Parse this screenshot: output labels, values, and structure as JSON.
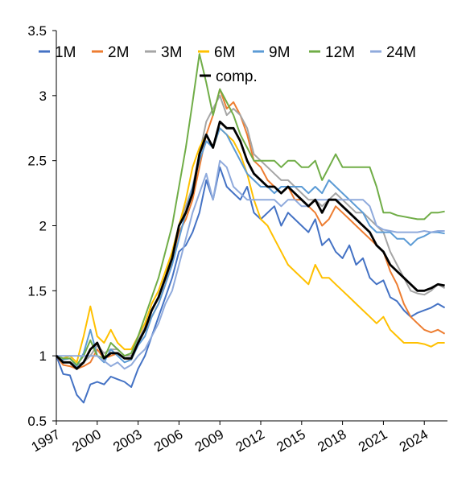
{
  "chart_data": {
    "type": "line",
    "title": "",
    "xlabel": "",
    "ylabel": "",
    "x_range": [
      1997.0,
      2025.7
    ],
    "ylim": [
      0.5,
      3.5
    ],
    "y_ticks": [
      0.5,
      1,
      1.5,
      2,
      2.5,
      3,
      3.5
    ],
    "y_tick_labels": [
      "0.5",
      "1",
      "1.5",
      "2",
      "2.5",
      "3",
      "3.5"
    ],
    "x_ticks": [
      1997,
      2000,
      2003,
      2006,
      2009,
      2012,
      2015,
      2018,
      2021,
      2024
    ],
    "x_tick_labels": [
      "1997",
      "2000",
      "2003",
      "2006",
      "2009",
      "2012",
      "2015",
      "2018",
      "2021",
      "2024"
    ],
    "grid": false,
    "legend_position": "top",
    "series": [
      {
        "name": "1M",
        "color": "#4472C4",
        "width": 2,
        "x": [
          1997,
          1997.5,
          1998,
          1998.5,
          1999,
          1999.5,
          2000,
          2000.5,
          2001,
          2001.5,
          2002,
          2002.5,
          2003,
          2003.5,
          2004,
          2004.5,
          2005,
          2005.5,
          2006,
          2006.5,
          2007,
          2007.5,
          2008,
          2008.5,
          2009,
          2009.5,
          2010,
          2010.5,
          2011,
          2011.5,
          2012,
          2012.5,
          2013,
          2013.5,
          2014,
          2014.5,
          2015,
          2015.5,
          2016,
          2016.5,
          2017,
          2017.5,
          2018,
          2018.5,
          2019,
          2019.5,
          2020,
          2020.5,
          2021,
          2021.5,
          2022,
          2022.5,
          2023,
          2023.5,
          2024,
          2024.5,
          2025,
          2025.5
        ],
        "y": [
          1.0,
          0.86,
          0.85,
          0.7,
          0.64,
          0.78,
          0.8,
          0.78,
          0.84,
          0.82,
          0.8,
          0.76,
          0.9,
          1.0,
          1.15,
          1.3,
          1.45,
          1.6,
          1.8,
          1.85,
          1.95,
          2.1,
          2.35,
          2.2,
          2.45,
          2.3,
          2.25,
          2.2,
          2.3,
          2.1,
          2.05,
          2.1,
          2.15,
          2.0,
          2.1,
          2.05,
          2.0,
          1.95,
          2.05,
          1.85,
          1.9,
          1.8,
          1.75,
          1.85,
          1.7,
          1.75,
          1.6,
          1.55,
          1.58,
          1.45,
          1.42,
          1.35,
          1.3,
          1.33,
          1.35,
          1.37,
          1.4,
          1.37
        ]
      },
      {
        "name": "2M",
        "color": "#ED7D31",
        "width": 2,
        "x": [
          1997,
          1997.5,
          1998,
          1998.5,
          1999,
          1999.5,
          2000,
          2000.5,
          2001,
          2001.5,
          2002,
          2002.5,
          2003,
          2003.5,
          2004,
          2004.5,
          2005,
          2005.5,
          2006,
          2006.5,
          2007,
          2007.5,
          2008,
          2008.5,
          2009,
          2009.5,
          2010,
          2010.5,
          2011,
          2011.5,
          2012,
          2012.5,
          2013,
          2013.5,
          2014,
          2014.5,
          2015,
          2015.5,
          2016,
          2016.5,
          2017,
          2017.5,
          2018,
          2018.5,
          2019,
          2019.5,
          2020,
          2020.5,
          2021,
          2021.5,
          2022,
          2022.5,
          2023,
          2023.5,
          2024,
          2024.5,
          2025,
          2025.5
        ],
        "y": [
          1.0,
          0.93,
          0.92,
          0.9,
          0.92,
          0.95,
          1.05,
          0.98,
          1.0,
          1.02,
          0.98,
          0.97,
          1.1,
          1.2,
          1.3,
          1.4,
          1.55,
          1.75,
          1.95,
          2.05,
          2.2,
          2.45,
          2.7,
          2.85,
          3.05,
          2.9,
          2.95,
          2.85,
          2.7,
          2.5,
          2.45,
          2.35,
          2.3,
          2.25,
          2.3,
          2.2,
          2.2,
          2.15,
          2.1,
          2.0,
          2.05,
          2.15,
          2.1,
          2.05,
          2.0,
          1.95,
          1.9,
          1.85,
          1.8,
          1.65,
          1.55,
          1.4,
          1.3,
          1.25,
          1.2,
          1.18,
          1.2,
          1.17
        ]
      },
      {
        "name": "3M",
        "color": "#A5A5A5",
        "width": 2,
        "x": [
          1997,
          1997.5,
          1998,
          1998.5,
          1999,
          1999.5,
          2000,
          2000.5,
          2001,
          2001.5,
          2002,
          2002.5,
          2003,
          2003.5,
          2004,
          2004.5,
          2005,
          2005.5,
          2006,
          2006.5,
          2007,
          2007.5,
          2008,
          2008.5,
          2009,
          2009.5,
          2010,
          2010.5,
          2011,
          2011.5,
          2012,
          2012.5,
          2013,
          2013.5,
          2014,
          2014.5,
          2015,
          2015.5,
          2016,
          2016.5,
          2017,
          2017.5,
          2018,
          2018.5,
          2019,
          2019.5,
          2020,
          2020.5,
          2021,
          2021.5,
          2022,
          2022.5,
          2023,
          2023.5,
          2024,
          2024.5,
          2025,
          2025.5
        ],
        "y": [
          1.0,
          0.95,
          0.95,
          0.93,
          0.95,
          1.0,
          1.08,
          1.02,
          1.05,
          1.05,
          1.0,
          1.0,
          1.12,
          1.22,
          1.35,
          1.45,
          1.6,
          1.8,
          2.0,
          2.15,
          2.3,
          2.55,
          2.8,
          2.9,
          3.0,
          2.85,
          2.9,
          2.85,
          2.75,
          2.55,
          2.5,
          2.45,
          2.4,
          2.35,
          2.35,
          2.3,
          2.25,
          2.2,
          2.2,
          2.15,
          2.2,
          2.25,
          2.2,
          2.15,
          2.1,
          2.1,
          2.05,
          2.0,
          1.95,
          1.8,
          1.7,
          1.6,
          1.5,
          1.48,
          1.47,
          1.5,
          1.55,
          1.52
        ]
      },
      {
        "name": "6M",
        "color": "#FFC000",
        "width": 2,
        "x": [
          1997,
          1997.5,
          1998,
          1998.5,
          1999,
          1999.5,
          2000,
          2000.5,
          2001,
          2001.5,
          2002,
          2002.5,
          2003,
          2003.5,
          2004,
          2004.5,
          2005,
          2005.5,
          2006,
          2006.5,
          2007,
          2007.5,
          2008,
          2008.5,
          2009,
          2009.5,
          2010,
          2010.5,
          2011,
          2011.5,
          2012,
          2012.5,
          2013,
          2013.5,
          2014,
          2014.5,
          2015,
          2015.5,
          2016,
          2016.5,
          2017,
          2017.5,
          2018,
          2018.5,
          2019,
          2019.5,
          2020,
          2020.5,
          2021,
          2021.5,
          2022,
          2022.5,
          2023,
          2023.5,
          2024,
          2024.5,
          2025,
          2025.5
        ],
        "y": [
          1.0,
          0.98,
          1.0,
          0.95,
          1.15,
          1.38,
          1.15,
          1.1,
          1.2,
          1.1,
          1.05,
          1.05,
          1.15,
          1.25,
          1.4,
          1.5,
          1.65,
          1.8,
          2.0,
          2.2,
          2.45,
          2.6,
          2.7,
          2.6,
          2.75,
          2.7,
          2.65,
          2.55,
          2.4,
          2.2,
          2.05,
          2.0,
          1.9,
          1.8,
          1.7,
          1.65,
          1.6,
          1.55,
          1.7,
          1.6,
          1.6,
          1.55,
          1.5,
          1.45,
          1.4,
          1.35,
          1.3,
          1.25,
          1.3,
          1.2,
          1.15,
          1.1,
          1.1,
          1.1,
          1.09,
          1.07,
          1.1,
          1.1
        ]
      },
      {
        "name": "9M",
        "color": "#5B9BD5",
        "width": 2,
        "x": [
          1997,
          1997.5,
          1998,
          1998.5,
          1999,
          1999.5,
          2000,
          2000.5,
          2001,
          2001.5,
          2002,
          2002.5,
          2003,
          2003.5,
          2004,
          2004.5,
          2005,
          2005.5,
          2006,
          2006.5,
          2007,
          2007.5,
          2008,
          2008.5,
          2009,
          2009.5,
          2010,
          2010.5,
          2011,
          2011.5,
          2012,
          2012.5,
          2013,
          2013.5,
          2014,
          2014.5,
          2015,
          2015.5,
          2016,
          2016.5,
          2017,
          2017.5,
          2018,
          2018.5,
          2019,
          2019.5,
          2020,
          2020.5,
          2021,
          2021.5,
          2022,
          2022.5,
          2023,
          2023.5,
          2024,
          2024.5,
          2025,
          2025.5
        ],
        "y": [
          1.0,
          0.97,
          0.98,
          0.92,
          1.02,
          1.2,
          1.0,
          0.95,
          1.05,
          1.0,
          0.95,
          0.97,
          1.08,
          1.15,
          1.3,
          1.4,
          1.55,
          1.7,
          1.9,
          2.1,
          2.3,
          2.5,
          2.65,
          2.6,
          2.75,
          2.7,
          2.6,
          2.5,
          2.4,
          2.35,
          2.3,
          2.3,
          2.25,
          2.3,
          2.3,
          2.3,
          2.3,
          2.25,
          2.3,
          2.25,
          2.35,
          2.3,
          2.25,
          2.2,
          2.15,
          2.1,
          2.0,
          1.95,
          1.95,
          1.95,
          1.9,
          1.9,
          1.85,
          1.9,
          1.92,
          1.95,
          1.95,
          1.94
        ]
      },
      {
        "name": "12M",
        "color": "#70AD47",
        "width": 2,
        "x": [
          1997,
          1997.5,
          1998,
          1998.5,
          1999,
          1999.5,
          2000,
          2000.5,
          2001,
          2001.5,
          2002,
          2002.5,
          2003,
          2003.5,
          2004,
          2004.5,
          2005,
          2005.5,
          2006,
          2006.5,
          2007,
          2007.5,
          2008,
          2008.5,
          2009,
          2009.5,
          2010,
          2010.5,
          2011,
          2011.5,
          2012,
          2012.5,
          2013,
          2013.5,
          2014,
          2014.5,
          2015,
          2015.5,
          2016,
          2016.5,
          2017,
          2017.5,
          2018,
          2018.5,
          2019,
          2019.5,
          2020,
          2020.5,
          2021,
          2021.5,
          2022,
          2022.5,
          2023,
          2023.5,
          2024,
          2024.5,
          2025,
          2025.5
        ],
        "y": [
          1.0,
          0.98,
          0.98,
          0.93,
          1.0,
          1.12,
          1.0,
          0.98,
          1.1,
          1.05,
          1.0,
          1.02,
          1.15,
          1.3,
          1.45,
          1.6,
          1.8,
          2.0,
          2.3,
          2.6,
          2.95,
          3.32,
          3.1,
          2.85,
          3.05,
          2.95,
          2.85,
          2.7,
          2.6,
          2.5,
          2.5,
          2.5,
          2.5,
          2.45,
          2.5,
          2.5,
          2.45,
          2.45,
          2.5,
          2.35,
          2.45,
          2.55,
          2.45,
          2.45,
          2.45,
          2.45,
          2.45,
          2.3,
          2.1,
          2.1,
          2.08,
          2.07,
          2.06,
          2.05,
          2.05,
          2.1,
          2.1,
          2.11
        ]
      },
      {
        "name": "24M",
        "color": "#8FAADC",
        "width": 2,
        "x": [
          1997,
          1997.5,
          1998,
          1998.5,
          1999,
          1999.5,
          2000,
          2000.5,
          2001,
          2001.5,
          2002,
          2002.5,
          2003,
          2003.5,
          2004,
          2004.5,
          2005,
          2005.5,
          2006,
          2006.5,
          2007,
          2007.5,
          2008,
          2008.5,
          2009,
          2009.5,
          2010,
          2010.5,
          2011,
          2011.5,
          2012,
          2012.5,
          2013,
          2013.5,
          2014,
          2014.5,
          2015,
          2015.5,
          2016,
          2016.5,
          2017,
          2017.5,
          2018,
          2018.5,
          2019,
          2019.5,
          2020,
          2020.5,
          2021,
          2021.5,
          2022,
          2022.5,
          2023,
          2023.5,
          2024,
          2024.5,
          2025,
          2025.5
        ],
        "y": [
          1.0,
          1.0,
          1.0,
          1.0,
          1.0,
          1.0,
          1.0,
          0.96,
          0.92,
          0.95,
          0.9,
          0.93,
          1.0,
          1.05,
          1.15,
          1.25,
          1.4,
          1.5,
          1.7,
          1.9,
          2.1,
          2.25,
          2.4,
          2.2,
          2.5,
          2.45,
          2.3,
          2.25,
          2.2,
          2.2,
          2.2,
          2.2,
          2.2,
          2.15,
          2.2,
          2.2,
          2.15,
          2.15,
          2.2,
          2.2,
          2.2,
          2.2,
          2.2,
          2.2,
          2.2,
          2.2,
          2.15,
          2.0,
          1.97,
          1.96,
          1.95,
          1.95,
          1.95,
          1.95,
          1.96,
          1.95,
          1.96,
          1.96
        ]
      },
      {
        "name": "comp.",
        "color": "#000000",
        "width": 2.8,
        "x": [
          1997,
          1997.5,
          1998,
          1998.5,
          1999,
          1999.5,
          2000,
          2000.5,
          2001,
          2001.5,
          2002,
          2002.5,
          2003,
          2003.5,
          2004,
          2004.5,
          2005,
          2005.5,
          2006,
          2006.5,
          2007,
          2007.5,
          2008,
          2008.5,
          2009,
          2009.5,
          2010,
          2010.5,
          2011,
          2011.5,
          2012,
          2012.5,
          2013,
          2013.5,
          2014,
          2014.5,
          2015,
          2015.5,
          2016,
          2016.5,
          2017,
          2017.5,
          2018,
          2018.5,
          2019,
          2019.5,
          2020,
          2020.5,
          2021,
          2021.5,
          2022,
          2022.5,
          2023,
          2023.5,
          2024,
          2024.5,
          2025,
          2025.5
        ],
        "y": [
          1.0,
          0.95,
          0.95,
          0.9,
          0.95,
          1.05,
          1.1,
          0.98,
          1.02,
          1.02,
          0.98,
          0.98,
          1.1,
          1.2,
          1.35,
          1.45,
          1.6,
          1.75,
          2.0,
          2.1,
          2.25,
          2.55,
          2.7,
          2.6,
          2.8,
          2.75,
          2.75,
          2.65,
          2.5,
          2.4,
          2.35,
          2.3,
          2.3,
          2.25,
          2.3,
          2.25,
          2.2,
          2.15,
          2.2,
          2.1,
          2.2,
          2.2,
          2.15,
          2.1,
          2.05,
          2.0,
          1.95,
          1.85,
          1.8,
          1.7,
          1.65,
          1.6,
          1.55,
          1.5,
          1.5,
          1.52,
          1.55,
          1.54
        ]
      }
    ]
  }
}
